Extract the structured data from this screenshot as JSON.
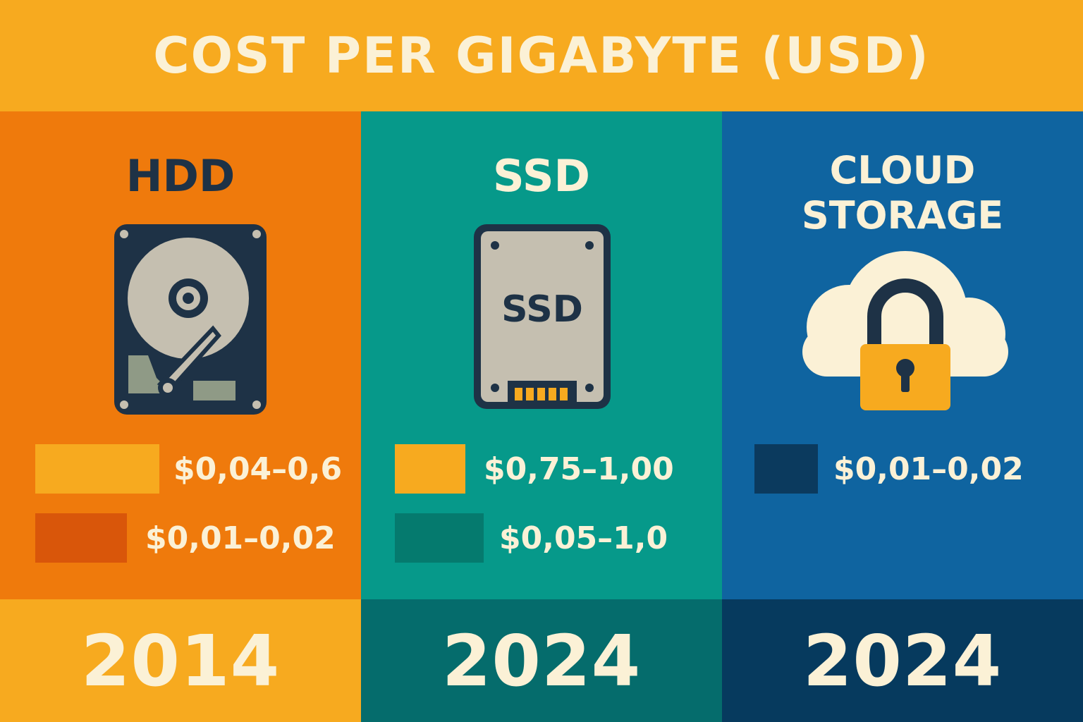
{
  "title": "COST PER GIGABYTE (USD)",
  "colors": {
    "header_bg": "#f7aa1f",
    "hdd_bg": "#ef7a0c",
    "ssd_bg": "#06998a",
    "cloud_bg": "#0f64a0",
    "text_cream": "#fbf1d6",
    "text_dark": "#1e3246"
  },
  "columns": [
    {
      "title": "HDD",
      "icon": "hard-drive-icon",
      "prices": [
        {
          "label": "$0,04–0,6",
          "swatch_color": "#f7aa1f"
        },
        {
          "label": "$0,01–0,02",
          "swatch_color": "#d9560a"
        }
      ],
      "year": "2014"
    },
    {
      "title": "SSD",
      "icon": "ssd-icon",
      "icon_label": "SSD",
      "prices": [
        {
          "label": "$0,75–1,00",
          "swatch_color": "#f7aa1f"
        },
        {
          "label": "$0,05–1,0",
          "swatch_color": "#057a6e"
        }
      ],
      "year": "2024"
    },
    {
      "title_lines": [
        "CLOUD",
        "STORAGE"
      ],
      "icon": "cloud-lock-icon",
      "prices": [
        {
          "label": "$0,01–0,02",
          "swatch_color": "#0b3a5e"
        }
      ],
      "year": "2024"
    }
  ]
}
